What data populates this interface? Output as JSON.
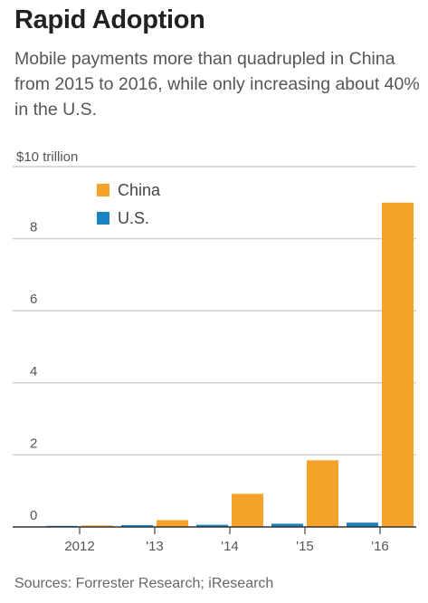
{
  "title": "Rapid Adoption",
  "subtitle": "Mobile payments more than quadrupled in China from 2015 to 2016, while only increasing about 40% in the U.S.",
  "source": "Sources: Forrester Research; iResearch",
  "chart_data": {
    "type": "bar",
    "categories": [
      "2012",
      "'13",
      "'14",
      "'15",
      "'16"
    ],
    "series": [
      {
        "name": "U.S.",
        "color": "#1a83c2",
        "values": [
          0.03,
          0.05,
          0.06,
          0.09,
          0.12
        ]
      },
      {
        "name": "China",
        "color": "#f5a22a",
        "values": [
          0.04,
          0.19,
          0.92,
          1.85,
          9.0
        ]
      }
    ],
    "y_unit_label": "$10 trillion",
    "yticks": [
      0,
      2,
      4,
      6,
      8
    ],
    "ylim": [
      0,
      10
    ],
    "grid": true,
    "legend": {
      "position": "top-left",
      "order": [
        "China",
        "U.S."
      ]
    }
  }
}
